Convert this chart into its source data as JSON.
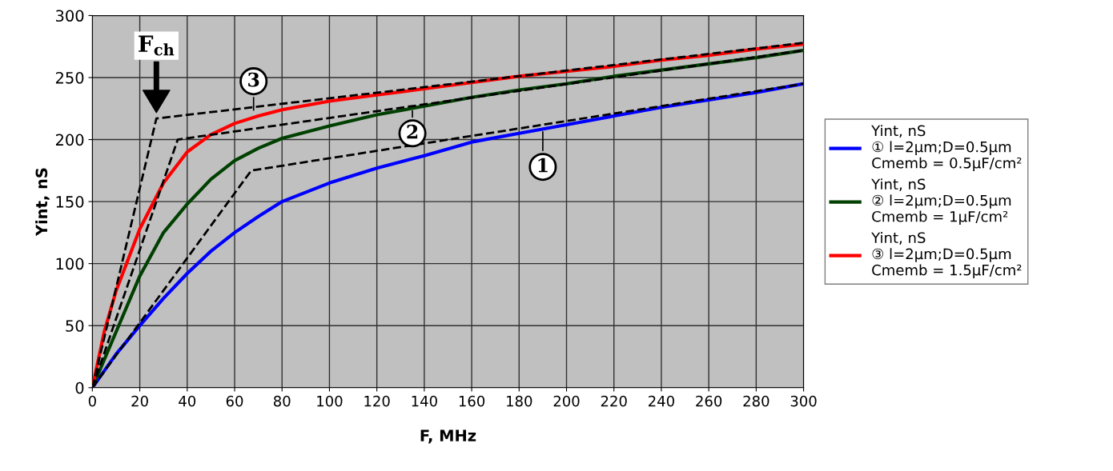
{
  "chart_data": {
    "type": "line",
    "xlabel": "F, MHz",
    "ylabel": "Yint, nS",
    "xlim": [
      0,
      300
    ],
    "ylim": [
      0,
      300
    ],
    "xticks": [
      0,
      20,
      40,
      60,
      80,
      100,
      120,
      140,
      160,
      180,
      200,
      220,
      240,
      260,
      280,
      300
    ],
    "yticks": [
      0,
      50,
      100,
      150,
      200,
      250,
      300
    ],
    "grid": true,
    "legend": "right",
    "line_style": "solid",
    "marker": "none",
    "series": [
      {
        "name": "Yint, nS\n① l=2µm;D=0.5µm\nCmemb = 0.5µF/cm²",
        "color": "#0000ff",
        "x": [
          0,
          10,
          20,
          30,
          40,
          50,
          60,
          70,
          80,
          100,
          120,
          140,
          160,
          180,
          200,
          220,
          240,
          260,
          280,
          300
        ],
        "values": [
          0,
          27,
          50,
          72,
          92,
          110,
          125,
          138,
          150,
          165,
          177,
          187,
          198,
          205,
          212,
          219,
          226,
          232,
          238,
          245
        ]
      },
      {
        "name": "Yint, nS\n② l=2µm;D=0.5µm\nCmemb = 1µF/cm²",
        "color": "#004000",
        "x": [
          0,
          10,
          20,
          30,
          40,
          50,
          60,
          70,
          80,
          100,
          120,
          140,
          160,
          180,
          200,
          220,
          240,
          260,
          280,
          300
        ],
        "values": [
          0,
          45,
          90,
          125,
          148,
          168,
          183,
          193,
          201,
          211,
          220,
          227,
          234,
          240,
          245,
          251,
          256,
          261,
          266,
          272
        ]
      },
      {
        "name": "Yint, nS\n③ l=2µm;D=0.5µm\nCmemb = 1.5µF/cm²",
        "color": "#ff0000",
        "x": [
          0,
          5,
          10,
          20,
          30,
          40,
          50,
          60,
          70,
          80,
          100,
          120,
          140,
          160,
          180,
          200,
          220,
          240,
          260,
          280,
          300
        ],
        "values": [
          0,
          45,
          78,
          128,
          165,
          190,
          204,
          213,
          219,
          224,
          231,
          236,
          241,
          246,
          251,
          255,
          259,
          264,
          268,
          273,
          277
        ]
      },
      {
        "color": "#000000",
        "line_style": "dashed",
        "x": [
          0,
          67,
          300
        ],
        "values": [
          0,
          175,
          245
        ]
      },
      {
        "color": "#000000",
        "line_style": "dashed",
        "x": [
          0,
          36,
          300
        ],
        "values": [
          0,
          200,
          272
        ]
      },
      {
        "color": "#000000",
        "line_style": "dashed",
        "x": [
          0,
          27,
          300
        ],
        "values": [
          0,
          217,
          278
        ]
      }
    ],
    "annotations": [
      {
        "text": "F$_{ch}$",
        "x": 27,
        "y": 217
      },
      {
        "text": "1",
        "x": 190,
        "y": 208
      },
      {
        "text": "2",
        "x": 135,
        "y": 225
      },
      {
        "text": "3",
        "x": 68,
        "y": 222
      }
    ]
  }
}
